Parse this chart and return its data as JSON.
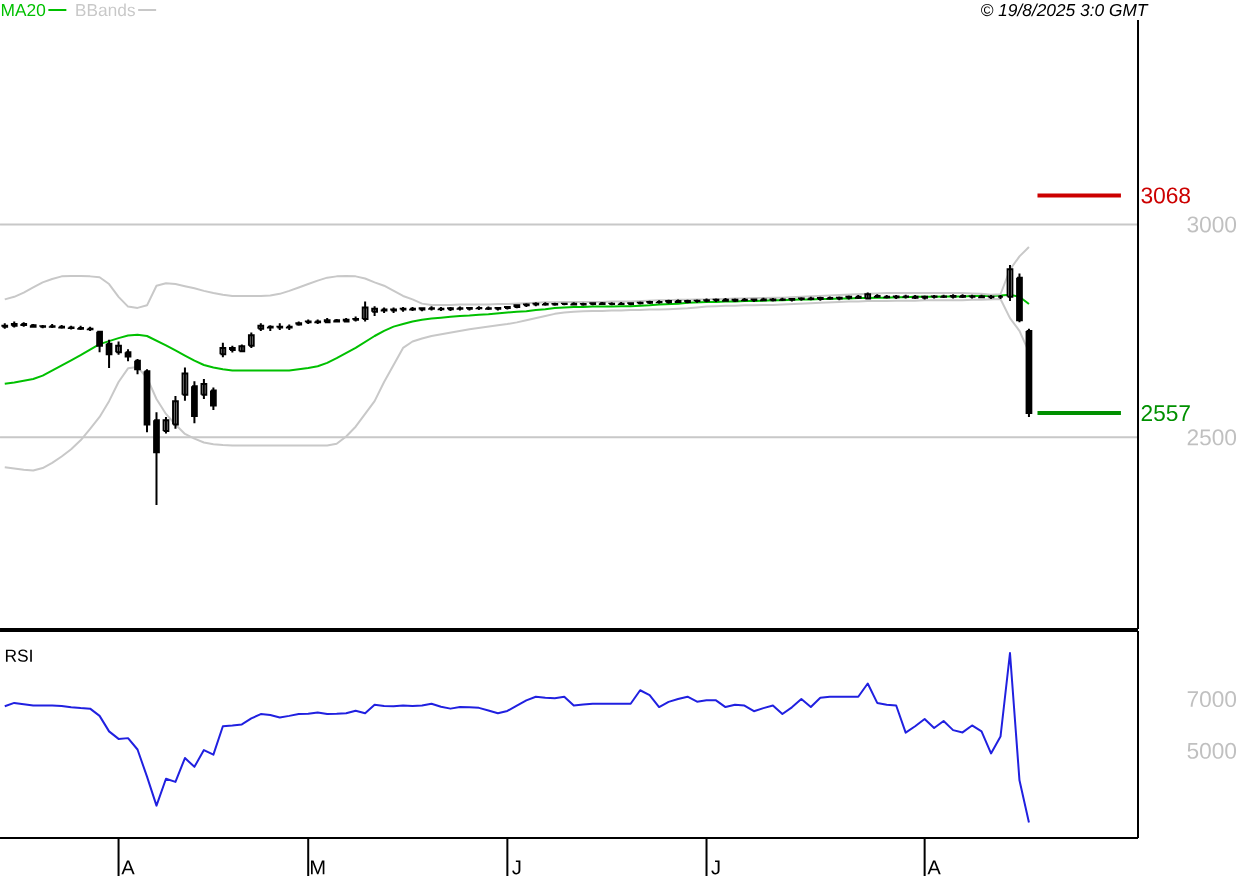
{
  "chart_data": [
    {
      "type": "candlestick",
      "color": "#000000",
      "categories": [
        null,
        null,
        null,
        null,
        null,
        null,
        null,
        null,
        null,
        null,
        null,
        null,
        null,
        null,
        null,
        null,
        null,
        null,
        null,
        null,
        null,
        null,
        null,
        null,
        null,
        null,
        null,
        null,
        null,
        null,
        null,
        null,
        null,
        null,
        null,
        null,
        null,
        null,
        null,
        null,
        null,
        null,
        null,
        null,
        null,
        null,
        null,
        null,
        null,
        null,
        null,
        null,
        null,
        null,
        null,
        null,
        null,
        null,
        null,
        null,
        null,
        null,
        null,
        null,
        null,
        null,
        null,
        null,
        null,
        null,
        null,
        null,
        null,
        null,
        null,
        null,
        null,
        null,
        null,
        null,
        null,
        null,
        null,
        null,
        null,
        null,
        null,
        null,
        null,
        null,
        null,
        null,
        null,
        null,
        null,
        null,
        null,
        null,
        null,
        null,
        null,
        null,
        null,
        null,
        null,
        null,
        null,
        null,
        null
      ],
      "ohlc": [
        [
          2760,
          2768,
          2755,
          2762
        ],
        [
          2762,
          2772,
          2758,
          2766
        ],
        [
          2766,
          2770,
          2760,
          2764
        ],
        [
          2763,
          2766,
          2758,
          2760
        ],
        [
          2760,
          2764,
          2756,
          2761
        ],
        [
          2761,
          2766,
          2757,
          2760
        ],
        [
          2760,
          2764,
          2755,
          2758
        ],
        [
          2758,
          2762,
          2753,
          2757
        ],
        [
          2757,
          2762,
          2752,
          2755
        ],
        [
          2755,
          2760,
          2750,
          2754
        ],
        [
          2748,
          2750,
          2700,
          2715
        ],
        [
          2720,
          2729,
          2663,
          2695
        ],
        [
          2700,
          2725,
          2694,
          2715
        ],
        [
          2700,
          2707,
          2679,
          2690
        ],
        [
          2680,
          2684,
          2648,
          2660
        ],
        [
          2655,
          2660,
          2512,
          2530
        ],
        [
          2540,
          2559,
          2341,
          2465
        ],
        [
          2515,
          2548,
          2509,
          2540
        ],
        [
          2530,
          2597,
          2520,
          2585
        ],
        [
          2600,
          2664,
          2586,
          2650
        ],
        [
          2620,
          2632,
          2533,
          2550
        ],
        [
          2600,
          2637,
          2590,
          2625
        ],
        [
          2610,
          2617,
          2564,
          2575
        ],
        [
          2695,
          2722,
          2688,
          2710
        ],
        [
          2705,
          2715,
          2699,
          2710
        ],
        [
          2702,
          2718,
          2700,
          2714
        ],
        [
          2715,
          2746,
          2710,
          2740
        ],
        [
          2755,
          2768,
          2750,
          2762
        ],
        [
          2760,
          2763,
          2750,
          2758
        ],
        [
          2758,
          2768,
          2752,
          2760
        ],
        [
          2760,
          2765,
          2752,
          2758
        ],
        [
          2765,
          2772,
          2762,
          2768
        ],
        [
          2770,
          2777,
          2766,
          2772
        ],
        [
          2772,
          2777,
          2766,
          2770
        ],
        [
          2770,
          2780,
          2770,
          2775
        ],
        [
          2775,
          2778,
          2770,
          2772
        ],
        [
          2772,
          2780,
          2770,
          2776
        ],
        [
          2776,
          2784,
          2772,
          2778
        ],
        [
          2778,
          2819,
          2772,
          2805
        ],
        [
          2795,
          2808,
          2785,
          2802
        ],
        [
          2800,
          2805,
          2792,
          2798
        ],
        [
          2798,
          2805,
          2792,
          2800
        ],
        [
          2800,
          2806,
          2795,
          2802
        ],
        [
          2802,
          2806,
          2797,
          2800
        ],
        [
          2800,
          2805,
          2796,
          2803
        ],
        [
          2803,
          2808,
          2798,
          2802
        ],
        [
          2802,
          2806,
          2797,
          2801
        ],
        [
          2801,
          2806,
          2797,
          2803
        ],
        [
          2803,
          2807,
          2798,
          2802
        ],
        [
          2802,
          2806,
          2798,
          2804
        ],
        [
          2804,
          2808,
          2799,
          2803
        ],
        [
          2803,
          2807,
          2799,
          2802
        ],
        [
          2802,
          2806,
          2798,
          2804
        ],
        [
          2804,
          2808,
          2800,
          2806
        ],
        [
          2806,
          2812,
          2803,
          2810
        ],
        [
          2810,
          2815,
          2806,
          2812
        ],
        [
          2812,
          2817,
          2808,
          2814
        ],
        [
          2813,
          2817,
          2809,
          2812
        ],
        [
          2812,
          2816,
          2809,
          2813
        ],
        [
          2813,
          2816,
          2810,
          2814
        ],
        [
          2814,
          2817,
          2810,
          2812
        ],
        [
          2812,
          2816,
          2809,
          2813
        ],
        [
          2813,
          2817,
          2810,
          2815
        ],
        [
          2815,
          2818,
          2811,
          2813
        ],
        [
          2813,
          2817,
          2810,
          2814
        ],
        [
          2814,
          2818,
          2811,
          2813
        ],
        [
          2813,
          2817,
          2810,
          2815
        ],
        [
          2815,
          2819,
          2812,
          2816
        ],
        [
          2816,
          2821,
          2813,
          2818
        ],
        [
          2818,
          2822,
          2814,
          2817
        ],
        [
          2817,
          2823,
          2814,
          2820
        ],
        [
          2820,
          2824,
          2816,
          2818
        ],
        [
          2818,
          2823,
          2815,
          2820
        ],
        [
          2820,
          2824,
          2816,
          2821
        ],
        [
          2821,
          2826,
          2817,
          2822
        ],
        [
          2822,
          2826,
          2818,
          2823
        ],
        [
          2823,
          2827,
          2819,
          2821
        ],
        [
          2821,
          2826,
          2818,
          2823
        ],
        [
          2823,
          2827,
          2819,
          2822
        ],
        [
          2822,
          2826,
          2818,
          2824
        ],
        [
          2824,
          2828,
          2820,
          2822
        ],
        [
          2822,
          2827,
          2819,
          2824
        ],
        [
          2824,
          2828,
          2820,
          2823
        ],
        [
          2823,
          2827,
          2819,
          2825
        ],
        [
          2825,
          2829,
          2821,
          2826
        ],
        [
          2826,
          2830,
          2822,
          2825
        ],
        [
          2825,
          2830,
          2821,
          2827
        ],
        [
          2827,
          2831,
          2823,
          2826
        ],
        [
          2826,
          2831,
          2822,
          2828
        ],
        [
          2828,
          2833,
          2824,
          2830
        ],
        [
          2830,
          2834,
          2825,
          2828
        ],
        [
          2826,
          2840,
          2824,
          2836
        ],
        [
          2832,
          2836,
          2827,
          2830
        ],
        [
          2830,
          2834,
          2826,
          2829
        ],
        [
          2829,
          2834,
          2825,
          2831
        ],
        [
          2831,
          2835,
          2826,
          2830
        ],
        [
          2830,
          2834,
          2825,
          2828
        ],
        [
          2828,
          2833,
          2824,
          2830
        ],
        [
          2830,
          2834,
          2826,
          2831
        ],
        [
          2831,
          2835,
          2827,
          2830
        ],
        [
          2830,
          2836,
          2826,
          2832
        ],
        [
          2832,
          2836,
          2827,
          2830
        ],
        [
          2830,
          2835,
          2826,
          2831
        ],
        [
          2831,
          2835,
          2827,
          2829
        ],
        [
          2829,
          2834,
          2825,
          2830
        ],
        [
          2830,
          2834,
          2825,
          2830
        ],
        [
          2830,
          2905,
          2820,
          2895
        ],
        [
          2875,
          2885,
          2770,
          2775
        ],
        [
          2750,
          2755,
          2548,
          2557
        ]
      ],
      "series": [
        {
          "name": "MA20",
          "type": "line",
          "color": "#00c000",
          "values": [
            2626,
            2629,
            2633,
            2637,
            2645,
            2657,
            2669,
            2681,
            2693,
            2706,
            2719,
            2726,
            2733,
            2739,
            2741,
            2738,
            2727,
            2716,
            2704,
            2692,
            2680,
            2670,
            2664,
            2660,
            2657,
            2657,
            2657,
            2657,
            2657,
            2657,
            2657,
            2660,
            2663,
            2667,
            2675,
            2686,
            2698,
            2710,
            2724,
            2738,
            2750,
            2760,
            2766,
            2772,
            2776,
            2779,
            2781,
            2783,
            2785,
            2786,
            2788,
            2789,
            2791,
            2793,
            2795,
            2796,
            2799,
            2801,
            2804,
            2805,
            2806,
            2806,
            2807,
            2807,
            2807,
            2808,
            2808,
            2809,
            2810,
            2812,
            2813,
            2814,
            2816,
            2817,
            2818,
            2818,
            2819,
            2819,
            2820,
            2820,
            2821,
            2822,
            2822,
            2823,
            2824,
            2824,
            2825,
            2825,
            2826,
            2826,
            2827,
            2827,
            2828,
            2828,
            2829,
            2829,
            2830,
            2830,
            2830,
            2831,
            2831,
            2831,
            2832,
            2832,
            2832,
            2833,
            2835,
            2830,
            2813
          ]
        },
        {
          "name": "BBands",
          "type": "line",
          "color": "#c8c8c8",
          "values": [
            2824,
            2830,
            2840,
            2852,
            2864,
            2872,
            2878,
            2879,
            2879,
            2878,
            2876,
            2860,
            2830,
            2807,
            2804,
            2810,
            2856,
            2862,
            2860,
            2855,
            2850,
            2844,
            2839,
            2835,
            2832,
            2832,
            2832,
            2832,
            2833,
            2837,
            2844,
            2852,
            2860,
            2868,
            2875,
            2878,
            2879,
            2878,
            2873,
            2864,
            2856,
            2844,
            2832,
            2824,
            2814,
            2811,
            2811,
            2811,
            2812,
            2812,
            2812,
            2812,
            2813,
            2813,
            2814,
            2815,
            2816,
            2817,
            2817,
            2818,
            2818,
            2818,
            2818,
            2818,
            2819,
            2819,
            2819,
            2820,
            2821,
            2822,
            2822,
            2823,
            2823,
            2824,
            2824,
            2825,
            2825,
            2826,
            2826,
            2827,
            2827,
            2828,
            2828,
            2829,
            2830,
            2831,
            2832,
            2833,
            2834,
            2835,
            2836,
            2837,
            2838,
            2839,
            2839,
            2839,
            2839,
            2839,
            2839,
            2839,
            2839,
            2839,
            2838,
            2837,
            2835,
            2836,
            2894,
            2925,
            2947
          ]
        },
        {
          "type": "line",
          "color": "#c8c8c8",
          "values": [
            2430,
            2427,
            2424,
            2422,
            2428,
            2440,
            2455,
            2472,
            2493,
            2520,
            2548,
            2585,
            2630,
            2662,
            2665,
            2640,
            2590,
            2555,
            2530,
            2508,
            2497,
            2488,
            2484,
            2482,
            2481,
            2481,
            2481,
            2481,
            2481,
            2481,
            2481,
            2481,
            2481,
            2481,
            2481,
            2485,
            2502,
            2525,
            2555,
            2585,
            2630,
            2670,
            2710,
            2725,
            2732,
            2738,
            2742,
            2746,
            2750,
            2754,
            2757,
            2760,
            2763,
            2766,
            2770,
            2775,
            2780,
            2785,
            2790,
            2793,
            2795,
            2796,
            2797,
            2797,
            2798,
            2798,
            2799,
            2799,
            2800,
            2800,
            2801,
            2802,
            2803,
            2805,
            2807,
            2808,
            2809,
            2809,
            2810,
            2810,
            2811,
            2811,
            2812,
            2813,
            2814,
            2815,
            2816,
            2817,
            2818,
            2819,
            2819,
            2820,
            2820,
            2820,
            2821,
            2821,
            2821,
            2822,
            2822,
            2822,
            2822,
            2822,
            2823,
            2823,
            2824,
            2825,
            2780,
            2750,
            2700
          ]
        }
      ],
      "ylim": [
        2050,
        3480
      ],
      "yticks": [
        2500,
        3000
      ],
      "grid": "y",
      "legend": "top left",
      "tick_labels": "y",
      "ref_lines": [
        {
          "axis": "y",
          "value": 3068,
          "label": "3068",
          "color": "#cc0000"
        },
        {
          "axis": "y",
          "value": 2557,
          "label": "2557",
          "color": "#009000"
        }
      ],
      "annotations": [
        "© 19/8/2025 3:0 GMT"
      ]
    },
    {
      "type": "line",
      "title": "RSI",
      "color": "#2020e0",
      "categories": [
        null,
        null,
        null,
        null,
        null,
        null,
        null,
        null,
        null,
        null,
        null,
        null,
        null,
        "A",
        null,
        null,
        null,
        null,
        null,
        null,
        null,
        null,
        null,
        null,
        null,
        null,
        null,
        null,
        null,
        null,
        null,
        null,
        null,
        "M",
        null,
        null,
        null,
        null,
        null,
        null,
        null,
        null,
        null,
        null,
        null,
        null,
        null,
        null,
        null,
        null,
        null,
        null,
        null,
        null,
        "J",
        null,
        null,
        null,
        null,
        null,
        null,
        null,
        null,
        null,
        null,
        null,
        null,
        null,
        null,
        null,
        null,
        null,
        null,
        null,
        null,
        "J",
        null,
        null,
        null,
        null,
        null,
        null,
        null,
        null,
        null,
        null,
        null,
        null,
        null,
        null,
        null,
        null,
        null,
        null,
        null,
        null,
        null,
        null,
        "A",
        null,
        null,
        null,
        null,
        null,
        null,
        null,
        null,
        null,
        null
      ],
      "values": [
        6720,
        6850,
        6800,
        6750,
        6750,
        6750,
        6730,
        6680,
        6650,
        6630,
        6350,
        5750,
        5460,
        5490,
        5050,
        4000,
        2880,
        3920,
        3800,
        4720,
        4380,
        5030,
        4850,
        5950,
        5980,
        6020,
        6250,
        6420,
        6380,
        6290,
        6350,
        6420,
        6430,
        6480,
        6420,
        6430,
        6450,
        6550,
        6450,
        6780,
        6730,
        6720,
        6750,
        6730,
        6750,
        6820,
        6700,
        6630,
        6690,
        6680,
        6660,
        6560,
        6450,
        6540,
        6750,
        6950,
        7090,
        7050,
        7030,
        7090,
        6750,
        6790,
        6820,
        6820,
        6820,
        6820,
        6820,
        7340,
        7150,
        6690,
        6890,
        7000,
        7090,
        6900,
        6950,
        6950,
        6690,
        6780,
        6750,
        6530,
        6650,
        6750,
        6420,
        6680,
        7000,
        6690,
        7050,
        7090,
        7090,
        7090,
        7090,
        7600,
        6850,
        6780,
        6750,
        5700,
        5950,
        6230,
        5880,
        6150,
        5800,
        5710,
        5980,
        5750,
        4900,
        5550,
        8780,
        3860,
        2230
      ],
      "ylim": [
        1630,
        9630
      ],
      "yticks": [
        5000,
        7000
      ]
    }
  ]
}
